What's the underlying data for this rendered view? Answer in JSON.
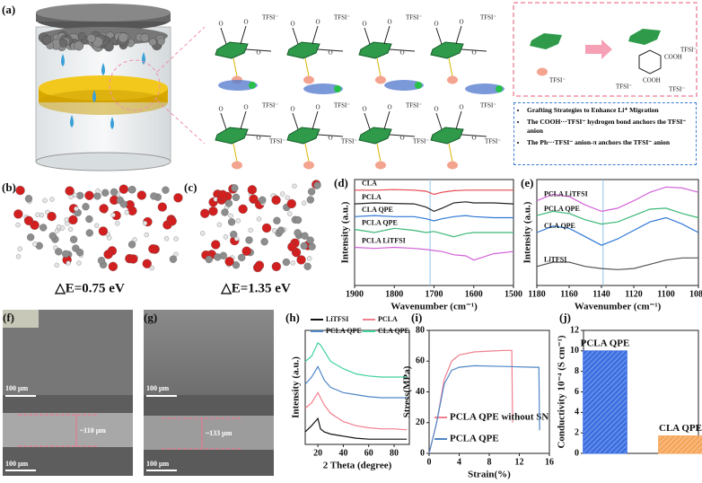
{
  "panel_labels": [
    "(a)",
    "(b)",
    "(c)",
    "(d)",
    "(e)",
    "(f)",
    "(g)",
    "(h)",
    "(i)",
    "(j)"
  ],
  "figure_a": {
    "tfsi": "TFSI⁻",
    "oxygen": "O",
    "cooh": "COOH",
    "grafting": [
      "Grafting Strategies to Enhance Li⁺ Migration",
      "The COOH···TFSI⁻ hydrogen bond anchors the TFSI⁻ anion",
      "The Ph···TFSI⁻ anion-π anchors the TFSI⁻ anion"
    ]
  },
  "energies": [
    "△E=0.75 eV",
    "△E=1.35 eV"
  ],
  "sem": {
    "scale": "100 μm",
    "thickness": [
      "~110 μm",
      "~133 μm"
    ]
  },
  "chart_data": [
    {
      "type": "line",
      "label_style": "inline",
      "xlabel": "Wavenumber (cm⁻¹)",
      "ylabel": "Intensity (a.u.)",
      "xlim": [
        1900,
        1500
      ],
      "xticks": [
        1900,
        1800,
        1700,
        1600,
        1500
      ],
      "ylim": [
        0,
        10
      ],
      "vline": 1710,
      "x": [
        1900,
        1850,
        1800,
        1750,
        1720,
        1700,
        1680,
        1650,
        1620,
        1600,
        1550,
        1500
      ],
      "series": [
        {
          "name": "CLA",
          "color": "#e8474f",
          "values": [
            9.0,
            9.0,
            9.05,
            9.0,
            8.9,
            8.6,
            8.8,
            8.95,
            9.0,
            9.0,
            9.0,
            9.0
          ]
        },
        {
          "name": "PCLA",
          "color": "#222222",
          "values": [
            7.7,
            7.8,
            7.75,
            7.7,
            7.4,
            7.0,
            7.3,
            7.8,
            7.9,
            7.8,
            7.8,
            7.7
          ]
        },
        {
          "name": "CLA QPE",
          "color": "#2f78d6",
          "values": [
            6.5,
            6.6,
            6.5,
            6.5,
            6.3,
            6.1,
            6.3,
            6.5,
            6.6,
            6.5,
            6.4,
            6.4
          ]
        },
        {
          "name": "PCLA QPE",
          "color": "#3cb878",
          "values": [
            5.3,
            5.0,
            5.4,
            5.2,
            5.0,
            5.1,
            4.9,
            4.6,
            4.9,
            5.0,
            5.0,
            5.0
          ]
        },
        {
          "name": "PCLA LiTFSI",
          "color": "#d262d8",
          "values": [
            3.6,
            3.5,
            3.6,
            3.5,
            3.4,
            3.3,
            3.2,
            2.9,
            2.8,
            2.4,
            3.0,
            3.2
          ]
        }
      ]
    },
    {
      "type": "line",
      "label_style": "inline",
      "xlabel": "Wavenumber (cm⁻¹)",
      "ylabel": "Intensity (a.u.)",
      "xlim": [
        1180,
        1080
      ],
      "xticks": [
        1180,
        1160,
        1140,
        1120,
        1100,
        1080
      ],
      "ylim": [
        0,
        10
      ],
      "vline": 1139,
      "x": [
        1180,
        1170,
        1160,
        1150,
        1140,
        1130,
        1120,
        1110,
        1100,
        1090,
        1080
      ],
      "series": [
        {
          "name": "PCLA LiTFSI",
          "color": "#d262d8",
          "values": [
            8.0,
            8.6,
            8.4,
            7.6,
            7.0,
            7.3,
            8.0,
            8.8,
            9.3,
            9.2,
            8.8
          ]
        },
        {
          "name": "PCLA QPE",
          "color": "#3cb878",
          "values": [
            6.6,
            7.0,
            6.8,
            6.2,
            5.8,
            6.0,
            6.6,
            7.2,
            7.3,
            6.8,
            6.4
          ]
        },
        {
          "name": "CLA QPE",
          "color": "#2f78d6",
          "values": [
            5.0,
            5.6,
            5.4,
            4.6,
            3.8,
            4.4,
            5.2,
            6.0,
            6.4,
            5.8,
            5.0
          ]
        },
        {
          "name": "LiTFSI",
          "color": "#555555",
          "values": [
            1.8,
            2.2,
            2.2,
            1.8,
            1.6,
            1.5,
            1.6,
            2.0,
            2.4,
            2.6,
            2.6
          ]
        }
      ]
    },
    {
      "type": "line",
      "label_style": "legend",
      "xlabel": "2 Theta (degree)",
      "ylabel": "Intensity (a.u.)",
      "xlim": [
        10,
        92
      ],
      "xticks": [
        20,
        40,
        60,
        80
      ],
      "ylim": [
        0,
        11
      ],
      "x": [
        10,
        15,
        20,
        22,
        25,
        30,
        40,
        50,
        60,
        70,
        80,
        90
      ],
      "series": [
        {
          "name": "LiTFSI",
          "color": "#111111",
          "values": [
            1.2,
            1.8,
            2.5,
            1.5,
            1.2,
            1.0,
            0.8,
            0.6,
            0.5,
            0.5,
            0.5,
            0.5
          ]
        },
        {
          "name": "PCLA",
          "color": "#f07f8f",
          "values": [
            3.5,
            4.0,
            5.0,
            4.5,
            3.8,
            3.0,
            2.2,
            1.8,
            1.6,
            1.5,
            1.5,
            1.4
          ]
        },
        {
          "name": "PCLA QPE",
          "color": "#4f86c6",
          "values": [
            5.8,
            6.5,
            7.5,
            7.0,
            6.2,
            5.5,
            5.0,
            4.8,
            4.6,
            4.5,
            4.5,
            4.5
          ]
        },
        {
          "name": "CLA QPE",
          "color": "#3fd29a",
          "values": [
            8.0,
            8.5,
            9.8,
            9.6,
            9.0,
            8.0,
            7.3,
            6.8,
            6.6,
            6.5,
            6.5,
            6.5
          ]
        }
      ]
    },
    {
      "type": "line",
      "label_style": "legend",
      "xlabel": "Strain(%)",
      "ylabel": "Stress(MPa)",
      "xlim": [
        0,
        16
      ],
      "xticks": [
        0,
        4,
        8,
        12,
        16
      ],
      "ylim": [
        0,
        80
      ],
      "yticks": [
        0,
        20,
        40,
        60,
        80
      ],
      "series": [
        {
          "name": "PCLA QPE without SN",
          "color": "#f07f8f",
          "x": [
            0,
            1,
            2,
            3,
            4,
            6,
            8,
            10,
            11,
            11.1
          ],
          "values": [
            0,
            20,
            48,
            60,
            64,
            66,
            66.5,
            67,
            67,
            20
          ]
        },
        {
          "name": "PCLA QPE",
          "color": "#4f86c6",
          "x": [
            0,
            1,
            2,
            3,
            4,
            6,
            10,
            14,
            14.6,
            14.7
          ],
          "values": [
            0,
            20,
            45,
            54,
            56,
            57,
            56.5,
            56,
            56,
            15
          ]
        }
      ]
    },
    {
      "type": "bar",
      "ylabel": "Conductivity 10⁻⁴ (S cm⁻¹)",
      "categories": [
        "PCLA QPE",
        "CLA QPE"
      ],
      "values": [
        10,
        1.7
      ],
      "colors": [
        "#3d6fe0",
        "#f5a65b"
      ],
      "ylim": [
        0,
        12
      ],
      "yticks": [
        0,
        2,
        4,
        6,
        8,
        10,
        12
      ]
    }
  ]
}
